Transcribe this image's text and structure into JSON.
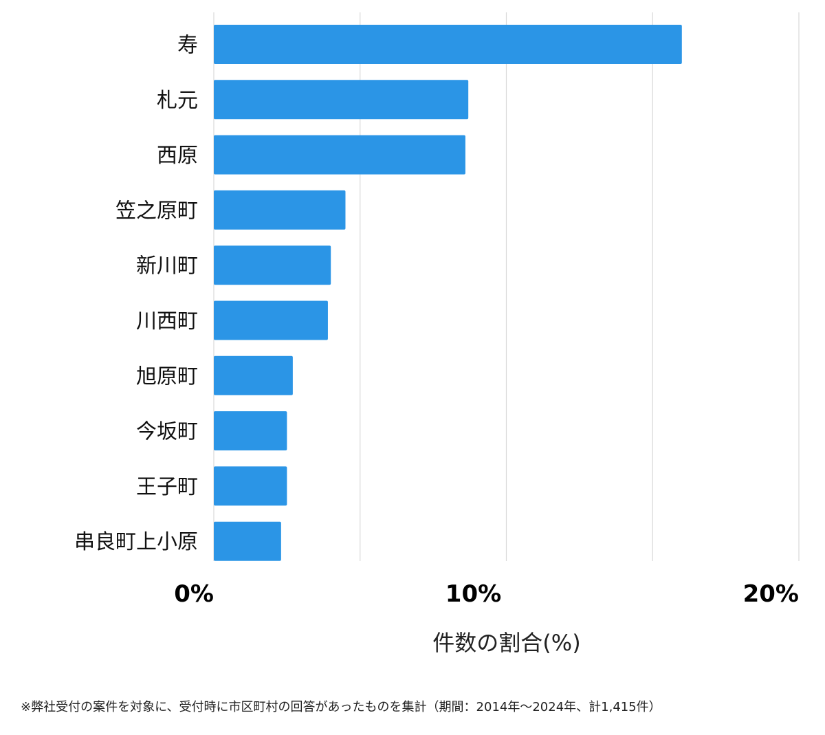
{
  "chart_data": {
    "type": "bar",
    "orientation": "horizontal",
    "categories": [
      "寿",
      "札元",
      "西原",
      "笠之原町",
      "新川町",
      "川西町",
      "旭原町",
      "今坂町",
      "王子町",
      "串良町上小原"
    ],
    "values": [
      16.0,
      8.7,
      8.6,
      4.5,
      4.0,
      3.9,
      2.7,
      2.5,
      2.5,
      2.3
    ],
    "xlim": [
      0,
      20
    ],
    "xticks": [
      {
        "value": 0,
        "label": "0%"
      },
      {
        "value": 10,
        "label": "10%"
      },
      {
        "value": 20,
        "label": "20%"
      }
    ],
    "gridlines": [
      0,
      5,
      10,
      15,
      20
    ],
    "xlabel": "件数の割合(%)",
    "ylabel": "",
    "bar_color": "#2B95E6",
    "grid_color": "#D9D9D9"
  },
  "footnote": "※弊社受付の案件を対象に、受付時に市区町村の回答があったものを集計（期間：2014年～2024年、計1,415件）"
}
